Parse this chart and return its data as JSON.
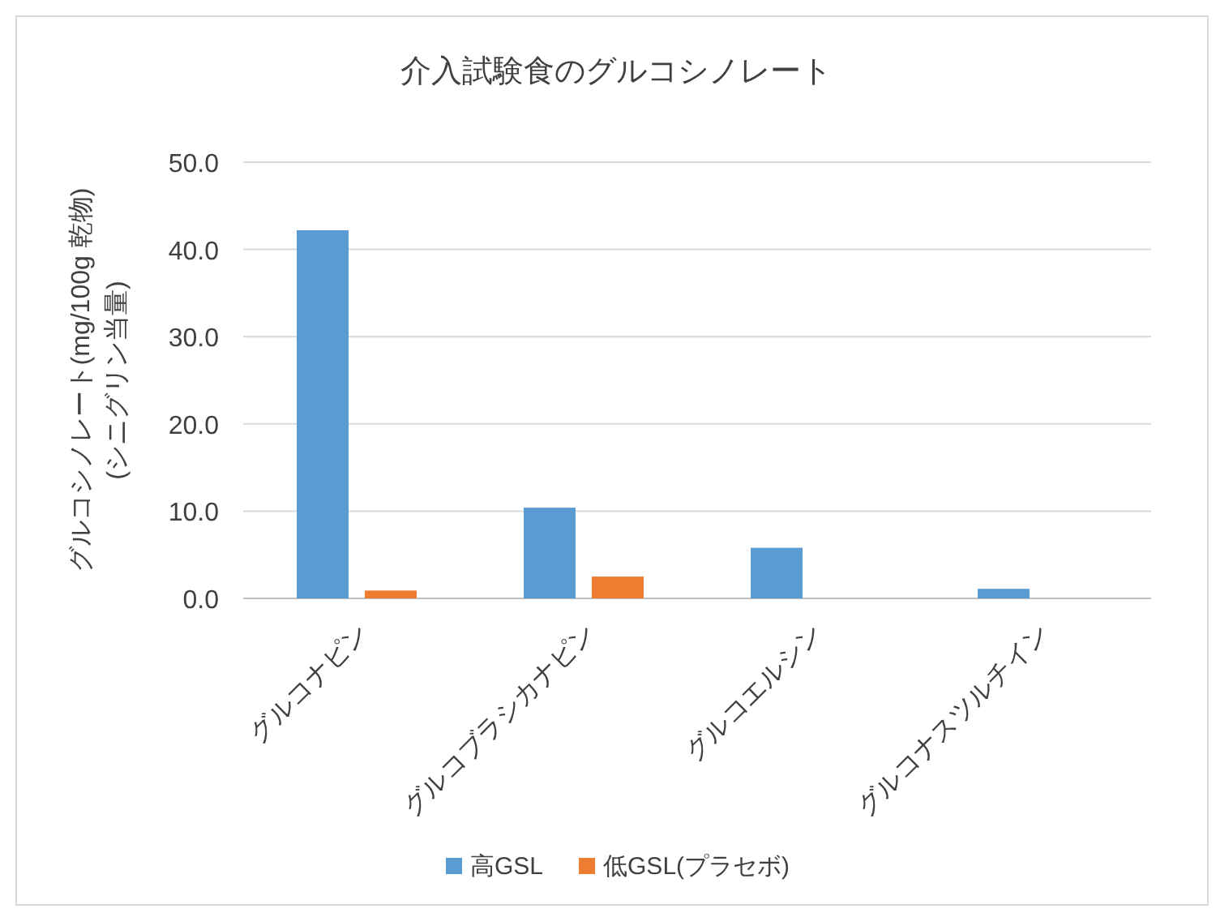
{
  "chart_data": {
    "type": "bar",
    "title": "介入試験食のグルコシノレート",
    "ylabel": "グルコシノレート(mg/100g 乾物)\n(シニグリン当量)",
    "categories": [
      "グルコナピン",
      "グルコブラシカナピン",
      "グルコエルシン",
      "グルコナスツルチイン"
    ],
    "series": [
      {
        "name": "高GSL",
        "color": "#5b9bd5",
        "values": [
          42.2,
          10.4,
          5.8,
          1.1
        ]
      },
      {
        "name": "低GSL(プラセボ)",
        "color": "#ed7d31",
        "values": [
          0.9,
          2.5,
          0,
          0
        ]
      }
    ],
    "ylim": [
      0,
      50
    ],
    "yticks": [
      {
        "value": 0,
        "label": "0.0"
      },
      {
        "value": 10,
        "label": "10.0"
      },
      {
        "value": 20,
        "label": "20.0"
      },
      {
        "value": 30,
        "label": "30.0"
      },
      {
        "value": 40,
        "label": "40.0"
      },
      {
        "value": 50,
        "label": "50.0"
      }
    ],
    "grid": "y",
    "legend": "bottom"
  }
}
